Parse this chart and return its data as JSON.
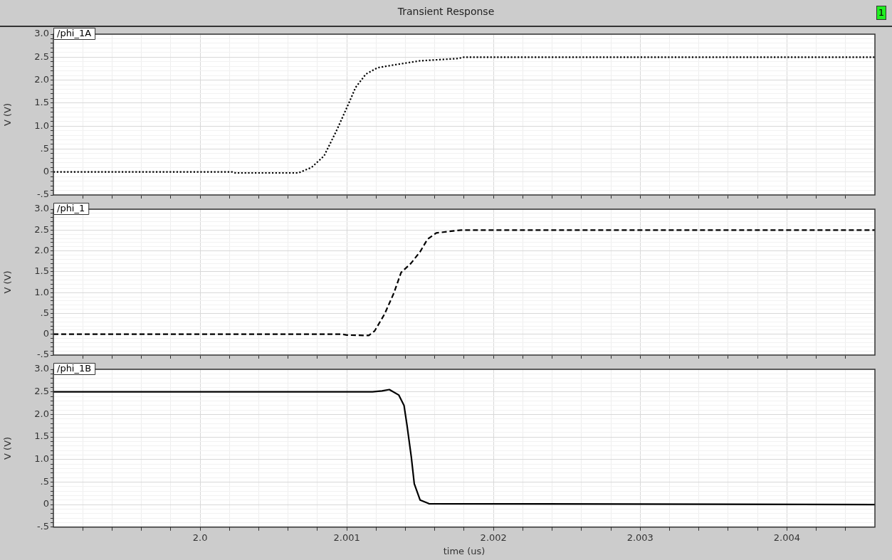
{
  "chart_data": [
    {
      "type": "line",
      "title": "Transient Response",
      "ylabel": "V (V)",
      "annotations": [
        "1"
      ],
      "legend": "top left",
      "grid": true,
      "tick_labels": "y",
      "marker": "none",
      "xlim": [
        1.999,
        2.0046
      ],
      "xticks": [
        {
          "value": 1.9992,
          "label": null
        },
        {
          "value": 1.9994,
          "label": null
        },
        {
          "value": 1.9996,
          "label": null
        },
        {
          "value": 1.9998,
          "label": null
        },
        2.0,
        {
          "value": 2.0002,
          "label": null
        },
        {
          "value": 2.0004,
          "label": null
        },
        {
          "value": 2.0006,
          "label": null
        },
        {
          "value": 2.0008,
          "label": null
        },
        2.001,
        {
          "value": 2.0012,
          "label": null
        },
        {
          "value": 2.0014,
          "label": null
        },
        {
          "value": 2.0016,
          "label": null
        },
        {
          "value": 2.0018,
          "label": null
        },
        2.002,
        {
          "value": 2.0022,
          "label": null
        },
        {
          "value": 2.0024,
          "label": null
        },
        {
          "value": 2.0026,
          "label": null
        },
        {
          "value": 2.0028,
          "label": null
        },
        2.003,
        {
          "value": 2.0032,
          "label": null
        },
        {
          "value": 2.0034,
          "label": null
        },
        {
          "value": 2.0036,
          "label": null
        },
        {
          "value": 2.0038,
          "label": null
        },
        2.004,
        {
          "value": 2.0042,
          "label": null
        },
        {
          "value": 2.0044,
          "label": null
        }
      ],
      "ylim": [
        -0.5,
        3.0
      ],
      "yticks": [
        {
          "value": -0.5,
          "label": "-.5"
        },
        {
          "value": -0.4,
          "label": null
        },
        {
          "value": -0.3,
          "label": null
        },
        {
          "value": -0.2,
          "label": null
        },
        {
          "value": -0.1,
          "label": null
        },
        {
          "value": 0,
          "label": "0"
        },
        {
          "value": 0.1,
          "label": null
        },
        {
          "value": 0.2,
          "label": null
        },
        {
          "value": 0.3,
          "label": null
        },
        {
          "value": 0.4,
          "label": null
        },
        {
          "value": 0.5,
          "label": ".5"
        },
        {
          "value": 0.6,
          "label": null
        },
        {
          "value": 0.7,
          "label": null
        },
        {
          "value": 0.8,
          "label": null
        },
        {
          "value": 0.9,
          "label": null
        },
        {
          "value": 1.0,
          "label": "1.0"
        },
        {
          "value": 1.1,
          "label": null
        },
        {
          "value": 1.2,
          "label": null
        },
        {
          "value": 1.3,
          "label": null
        },
        {
          "value": 1.4,
          "label": null
        },
        {
          "value": 1.5,
          "label": "1.5"
        },
        {
          "value": 1.6,
          "label": null
        },
        {
          "value": 1.7,
          "label": null
        },
        {
          "value": 1.8,
          "label": null
        },
        {
          "value": 1.9,
          "label": null
        },
        {
          "value": 2.0,
          "label": "2.0"
        },
        {
          "value": 2.1,
          "label": null
        },
        {
          "value": 2.2,
          "label": null
        },
        {
          "value": 2.3,
          "label": null
        },
        {
          "value": 2.4,
          "label": null
        },
        {
          "value": 2.5,
          "label": "2.5"
        },
        {
          "value": 2.6,
          "label": null
        },
        {
          "value": 2.7,
          "label": null
        },
        {
          "value": 2.8,
          "label": null
        },
        {
          "value": 2.9,
          "label": null
        },
        {
          "value": 3.0,
          "label": "3.0"
        }
      ],
      "series": [
        {
          "name": "/phi_1A",
          "color": "#000000",
          "line_style": "dotted",
          "x": [
            1.999,
            2.00022,
            2.00024,
            2.00067,
            2.00076,
            2.000845,
            2.00093,
            2.00101,
            2.00106,
            2.00113,
            2.00121,
            2.00134,
            2.0015,
            2.00176,
            2.0018,
            2.0046
          ],
          "values": [
            0,
            0,
            -0.02,
            -0.02,
            0.1,
            0.35,
            0.9,
            1.47,
            1.84,
            2.13,
            2.27,
            2.34,
            2.42,
            2.47,
            2.5,
            2.5
          ]
        }
      ]
    },
    {
      "type": "line",
      "ylabel": "V (V)",
      "legend": "top left",
      "grid": true,
      "tick_labels": "y",
      "marker": "none",
      "xlim": [
        1.999,
        2.0046
      ],
      "xticks": [
        {
          "value": 1.9992,
          "label": null
        },
        {
          "value": 1.9994,
          "label": null
        },
        {
          "value": 1.9996,
          "label": null
        },
        {
          "value": 1.9998,
          "label": null
        },
        2.0,
        {
          "value": 2.0002,
          "label": null
        },
        {
          "value": 2.0004,
          "label": null
        },
        {
          "value": 2.0006,
          "label": null
        },
        {
          "value": 2.0008,
          "label": null
        },
        2.001,
        {
          "value": 2.0012,
          "label": null
        },
        {
          "value": 2.0014,
          "label": null
        },
        {
          "value": 2.0016,
          "label": null
        },
        {
          "value": 2.0018,
          "label": null
        },
        2.002,
        {
          "value": 2.0022,
          "label": null
        },
        {
          "value": 2.0024,
          "label": null
        },
        {
          "value": 2.0026,
          "label": null
        },
        {
          "value": 2.0028,
          "label": null
        },
        2.003,
        {
          "value": 2.0032,
          "label": null
        },
        {
          "value": 2.0034,
          "label": null
        },
        {
          "value": 2.0036,
          "label": null
        },
        {
          "value": 2.0038,
          "label": null
        },
        2.004,
        {
          "value": 2.0042,
          "label": null
        },
        {
          "value": 2.0044,
          "label": null
        }
      ],
      "ylim": [
        -0.5,
        3.0
      ],
      "yticks": [
        {
          "value": -0.5,
          "label": "-.5"
        },
        {
          "value": -0.4,
          "label": null
        },
        {
          "value": -0.3,
          "label": null
        },
        {
          "value": -0.2,
          "label": null
        },
        {
          "value": -0.1,
          "label": null
        },
        {
          "value": 0,
          "label": "0"
        },
        {
          "value": 0.1,
          "label": null
        },
        {
          "value": 0.2,
          "label": null
        },
        {
          "value": 0.3,
          "label": null
        },
        {
          "value": 0.4,
          "label": null
        },
        {
          "value": 0.5,
          "label": ".5"
        },
        {
          "value": 0.6,
          "label": null
        },
        {
          "value": 0.7,
          "label": null
        },
        {
          "value": 0.8,
          "label": null
        },
        {
          "value": 0.9,
          "label": null
        },
        {
          "value": 1.0,
          "label": "1.0"
        },
        {
          "value": 1.1,
          "label": null
        },
        {
          "value": 1.2,
          "label": null
        },
        {
          "value": 1.3,
          "label": null
        },
        {
          "value": 1.4,
          "label": null
        },
        {
          "value": 1.5,
          "label": "1.5"
        },
        {
          "value": 1.6,
          "label": null
        },
        {
          "value": 1.7,
          "label": null
        },
        {
          "value": 1.8,
          "label": null
        },
        {
          "value": 1.9,
          "label": null
        },
        {
          "value": 2.0,
          "label": "2.0"
        },
        {
          "value": 2.1,
          "label": null
        },
        {
          "value": 2.2,
          "label": null
        },
        {
          "value": 2.3,
          "label": null
        },
        {
          "value": 2.4,
          "label": null
        },
        {
          "value": 2.5,
          "label": "2.5"
        },
        {
          "value": 2.6,
          "label": null
        },
        {
          "value": 2.7,
          "label": null
        },
        {
          "value": 2.8,
          "label": null
        },
        {
          "value": 2.9,
          "label": null
        },
        {
          "value": 3.0,
          "label": "3.0"
        }
      ],
      "series": [
        {
          "name": "/phi_1",
          "color": "#000000",
          "line_style": "dashed",
          "x": [
            1.999,
            2.00097,
            2.001,
            2.00115,
            2.00119,
            2.001257,
            2.00132,
            2.00137,
            2.001437,
            2.0015,
            2.00155,
            2.00161,
            2.00178,
            2.0046
          ],
          "values": [
            0,
            0,
            -0.02,
            -0.03,
            0.08,
            0.48,
            0.98,
            1.48,
            1.7,
            1.98,
            2.28,
            2.43,
            2.5,
            2.5
          ]
        }
      ]
    },
    {
      "type": "line",
      "ylabel": "V (V)",
      "xlabel": "time (us)",
      "legend": "top left",
      "grid": true,
      "marker": "none",
      "xlim": [
        1.999,
        2.0046
      ],
      "xticks": [
        {
          "value": 1.9992,
          "label": null
        },
        {
          "value": 1.9994,
          "label": null
        },
        {
          "value": 1.9996,
          "label": null
        },
        {
          "value": 1.9998,
          "label": null
        },
        {
          "value": 2.0,
          "label": "2.0"
        },
        {
          "value": 2.0002,
          "label": null
        },
        {
          "value": 2.0004,
          "label": null
        },
        {
          "value": 2.0006,
          "label": null
        },
        {
          "value": 2.0008,
          "label": null
        },
        2.001,
        {
          "value": 2.0012,
          "label": null
        },
        {
          "value": 2.0014,
          "label": null
        },
        {
          "value": 2.0016,
          "label": null
        },
        {
          "value": 2.0018,
          "label": null
        },
        2.002,
        {
          "value": 2.0022,
          "label": null
        },
        {
          "value": 2.0024,
          "label": null
        },
        {
          "value": 2.0026,
          "label": null
        },
        {
          "value": 2.0028,
          "label": null
        },
        2.003,
        {
          "value": 2.0032,
          "label": null
        },
        {
          "value": 2.0034,
          "label": null
        },
        {
          "value": 2.0036,
          "label": null
        },
        {
          "value": 2.0038,
          "label": null
        },
        2.004,
        {
          "value": 2.0042,
          "label": null
        },
        {
          "value": 2.0044,
          "label": null
        }
      ],
      "ylim": [
        -0.5,
        3.0
      ],
      "yticks": [
        {
          "value": -0.5,
          "label": "-.5"
        },
        {
          "value": -0.4,
          "label": null
        },
        {
          "value": -0.3,
          "label": null
        },
        {
          "value": -0.2,
          "label": null
        },
        {
          "value": -0.1,
          "label": null
        },
        0,
        {
          "value": 0.1,
          "label": null
        },
        {
          "value": 0.2,
          "label": null
        },
        {
          "value": 0.3,
          "label": null
        },
        {
          "value": 0.4,
          "label": null
        },
        {
          "value": 0.5,
          "label": ".5"
        },
        {
          "value": 0.6,
          "label": null
        },
        {
          "value": 0.7,
          "label": null
        },
        {
          "value": 0.8,
          "label": null
        },
        {
          "value": 0.9,
          "label": null
        },
        {
          "value": 1.0,
          "label": "1.0"
        },
        {
          "value": 1.1,
          "label": null
        },
        {
          "value": 1.2,
          "label": null
        },
        {
          "value": 1.3,
          "label": null
        },
        {
          "value": 1.4,
          "label": null
        },
        {
          "value": 1.5,
          "label": "1.5"
        },
        {
          "value": 1.6,
          "label": null
        },
        {
          "value": 1.7,
          "label": null
        },
        {
          "value": 1.8,
          "label": null
        },
        {
          "value": 1.9,
          "label": null
        },
        {
          "value": 2.0,
          "label": "2.0"
        },
        {
          "value": 2.1,
          "label": null
        },
        {
          "value": 2.2,
          "label": null
        },
        {
          "value": 2.3,
          "label": null
        },
        {
          "value": 2.4,
          "label": null
        },
        {
          "value": 2.5,
          "label": "2.5"
        },
        {
          "value": 2.6,
          "label": null
        },
        {
          "value": 2.7,
          "label": null
        },
        {
          "value": 2.8,
          "label": null
        },
        {
          "value": 2.9,
          "label": null
        },
        {
          "value": 3.0,
          "label": "3.0"
        }
      ],
      "series": [
        {
          "name": "/phi_1B",
          "color": "#000000",
          "line_style": "solid",
          "x": [
            1.999,
            2.001175,
            2.00124,
            2.00129,
            2.001354,
            2.00139,
            2.00141,
            2.00144,
            2.00146,
            2.0015,
            2.00156,
            2.0046
          ],
          "values": [
            2.5,
            2.5,
            2.52,
            2.55,
            2.43,
            2.2,
            1.77,
            1.05,
            0.46,
            0.1,
            0.02,
            0
          ]
        }
      ]
    }
  ]
}
